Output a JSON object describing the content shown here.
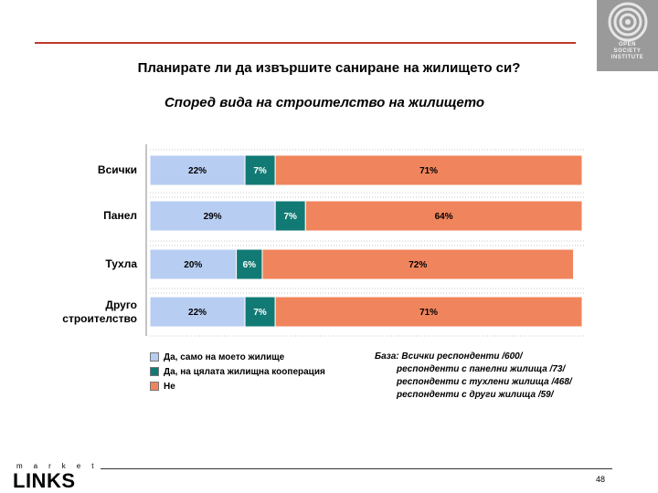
{
  "header": {
    "logo_text": [
      "OPEN",
      "SOCIETY",
      "INSTITUTE"
    ]
  },
  "title": "Планирате ли да извършите саниране на жилището си?",
  "subtitle": "Според вида на строителство на жилището",
  "chart_data": {
    "type": "bar",
    "orientation": "horizontal-stacked-100",
    "categories": [
      "Всички",
      "Панел",
      "Тухла",
      "Друго строителство"
    ],
    "category_lines": [
      [
        "Всички"
      ],
      [
        "Панел"
      ],
      [
        "Тухла"
      ],
      [
        "Друго",
        "строителство"
      ]
    ],
    "series": [
      {
        "name": "Да, само на моето жилище",
        "color": "#b7cdf2",
        "values": [
          22,
          29,
          20,
          22
        ]
      },
      {
        "name": "Да, на цялата жилищна кооперация",
        "color": "#127a74",
        "values": [
          7,
          7,
          6,
          7
        ]
      },
      {
        "name": "Не",
        "color": "#f0845c",
        "values": [
          71,
          64,
          72,
          71
        ]
      }
    ],
    "value_suffix": "%",
    "xlim": [
      0,
      100
    ],
    "legend_position": "bottom-left"
  },
  "base_note": {
    "lines": [
      "База: Всички респонденти /600/",
      "респонденти с панелни жилища /73/",
      "респонденти с тухлени жилища /468/",
      "респонденти с други жилища /59/"
    ]
  },
  "footer": {
    "brand_small": "market",
    "brand_big": "LINKS",
    "page_number": "48"
  }
}
